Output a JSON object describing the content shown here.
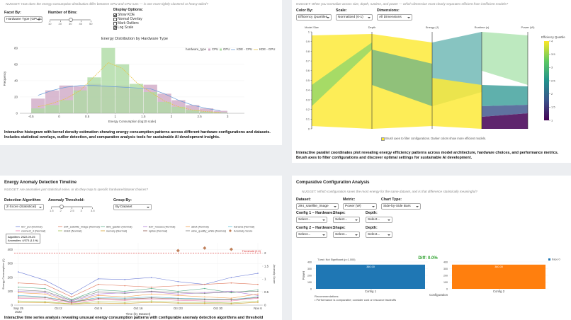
{
  "histogram_panel": {
    "nugget": "NUGGET: How does the energy consumption distribution differ between GPU and CPU runs — is one more tightly clustered or heavy-tailed?",
    "facet": {
      "label": "Facet By:",
      "value": "Hardware Type (GPU/CPU)"
    },
    "bins_control": {
      "label": "Number of Bins:",
      "ticks": [
        10,
        20,
        30,
        40,
        50
      ],
      "value": 30
    },
    "display": {
      "label": "Display Options:",
      "options": [
        {
          "label": "Show KDE",
          "checked": true
        },
        {
          "label": "Normal Overlay",
          "checked": false
        },
        {
          "label": "Mark Outliers",
          "checked": false
        },
        {
          "label": "Log Scale",
          "checked": true
        }
      ]
    },
    "chart": {
      "type": "histogram",
      "title": "Energy Distribution by Hardware Type",
      "x_label": "Energy Consumption (log10 scale)",
      "y_label": "Frequency",
      "legend_title": "hardware_type",
      "bins": [
        -0.5,
        -0.25,
        0,
        0.25,
        0.5,
        0.75,
        1,
        1.25,
        1.5,
        1.75,
        2,
        2.25,
        2.5,
        2.75,
        3
      ],
      "series": [
        {
          "name": "CPU",
          "color": "#cfa9c6",
          "values": [
            18,
            28,
            34,
            33,
            36,
            33,
            34,
            30,
            35,
            24,
            16,
            10,
            6,
            3
          ]
        },
        {
          "name": "GPU",
          "color": "#aedba4",
          "values": [
            6,
            10,
            16,
            28,
            44,
            80,
            60,
            36,
            26,
            14,
            8,
            4,
            2,
            1
          ]
        }
      ],
      "kde": [
        {
          "name": "KDE - CPU",
          "color": "#6f9fd8",
          "values": [
            22,
            28,
            32,
            34,
            34,
            33,
            32,
            31,
            30,
            24,
            16,
            10,
            6,
            3
          ]
        },
        {
          "name": "KDE - GPU",
          "color": "#e8c547",
          "values": [
            8,
            12,
            18,
            28,
            45,
            62,
            55,
            38,
            26,
            15,
            8,
            4,
            2,
            1
          ]
        }
      ],
      "xlim": [
        -0.7,
        3.3
      ],
      "xticks": [
        -0.5,
        0,
        0.5,
        1,
        1.5,
        2,
        2.5,
        3
      ],
      "ylim": [
        0,
        85
      ],
      "yticks": [
        0,
        20,
        40,
        60,
        80
      ]
    },
    "description": "Interactive histogram with kernel density estimation showing energy consumption patterns across different hardware configurations and datasets. Includes statistical overlays, outlier detection, and comparative analysis tools for sustainable AI development insights."
  },
  "parallel_panel": {
    "nugget": "NUGGET: When you normalize across size, depth, runtime, and power — which dimension most clearly separates efficient from inefficient models?",
    "color_by": {
      "label": "Color By:",
      "value": "Efficiency Quartiles"
    },
    "scale": {
      "label": "Scale:",
      "value": "Normalized (0-1)"
    },
    "dimensions": {
      "label": "Dimensions:",
      "value": "All Dimensions"
    },
    "chart": {
      "type": "parallel",
      "axes": [
        "Model Size",
        "Depth",
        "Energy (J)",
        "Runtime (s)",
        "Power (W)"
      ],
      "ylim": [
        0,
        1
      ],
      "yticks": [
        0,
        0.1,
        0.2,
        0.3,
        0.4,
        0.5,
        0.6,
        0.7,
        0.8,
        0.9,
        1
      ],
      "colorbar": {
        "title": "Efficiency Quartile",
        "lim": [
          1,
          4
        ],
        "ticks": [
          1,
          1.5,
          2,
          2.5,
          3,
          3.5,
          4
        ],
        "colors": [
          "#440154",
          "#3b528b",
          "#21918c",
          "#5ec962",
          "#fde725"
        ]
      }
    },
    "caption": "Brush axes to filter configurations. Darker colors show more efficient models.",
    "description": "Interactive parallel coordinates plot revealing energy efficiency patterns across model architecture, hardware choices, and performance metrics. Brush axes to filter configurations and discover optimal settings for sustainable AI development."
  },
  "anomaly_panel": {
    "title": "Energy Anomaly Detection Timeline",
    "nugget": "NUGGET: Are anomalies just statistical noise, or do they map to specific hardware/dataset choices?",
    "algorithm": {
      "label": "Detection Algorithm:",
      "value": "Z-Score (Statistical)"
    },
    "threshold": {
      "label": "Anomaly Threshold:",
      "ticks": [
        1.5,
        2,
        2.5,
        3,
        3.5
      ],
      "value": 2
    },
    "group_by": {
      "label": "Group By:",
      "value": "By Dataset"
    },
    "tooltip": [
      "Algorithm: 2022-09-25",
      "Anomalies: 4/373 (1.1%)"
    ],
    "chart": {
      "type": "line",
      "x_label": "Time (by Dataset)",
      "y_label": "Energy Consumption (J)",
      "y2_label": "Anomaly Score",
      "xticks": [
        "Sep 25",
        "Oct 2",
        "Oct 9",
        "Oct 16",
        "Oct 23",
        "Oct 30",
        "Nov 6"
      ],
      "xtick_year": "2022",
      "ylim": [
        0,
        450
      ],
      "yticks": [
        0,
        100,
        200,
        300,
        400
      ],
      "y2lim": [
        0,
        2.4
      ],
      "y2ticks": [
        0,
        0.5,
        1,
        1.5,
        2
      ],
      "threshold": {
        "value": 2,
        "label": "Threshold (2.0)"
      },
      "series": [
        {
          "name": "ID7_pol (Normal)",
          "color": "#6f7fd8",
          "values": [
            240,
            180,
            80,
            190,
            185,
            200,
            170,
            150,
            200,
            230
          ]
        },
        {
          "name": "294_satellite_image (Normal)",
          "color": "#e07a5f",
          "values": [
            160,
            150,
            60,
            150,
            140,
            130,
            140,
            150,
            160,
            150
          ]
        },
        {
          "name": "505_gasfan (Normal)",
          "color": "#5fb08c",
          "values": [
            130,
            120,
            40,
            110,
            100,
            120,
            100,
            120,
            90,
            110
          ]
        },
        {
          "name": "537_houses (Normal)",
          "color": "#b07cd8",
          "values": [
            100,
            90,
            30,
            80,
            90,
            95,
            80,
            90,
            100,
            70
          ]
        },
        {
          "name": "adult (Normal)",
          "color": "#f0a050",
          "values": [
            90,
            80,
            20,
            70,
            60,
            80,
            70,
            60,
            50,
            80
          ]
        },
        {
          "name": "banana (Normal)",
          "color": "#5cc0d8",
          "values": [
            70,
            60,
            25,
            55,
            50,
            60,
            50,
            45,
            40,
            60
          ]
        },
        {
          "name": "connect_4 (Normal)",
          "color": "#e87fb0",
          "values": [
            50,
            45,
            15,
            40,
            35,
            45,
            35,
            30,
            30,
            50
          ]
        },
        {
          "name": "mnist (Normal)",
          "color": "#a0c050",
          "values": [
            30,
            25,
            10,
            25,
            20,
            30,
            20,
            20,
            15,
            30
          ]
        },
        {
          "name": "nursery (Normal)",
          "color": "#d4a030",
          "values": [
            20,
            18,
            8,
            15,
            12,
            20,
            14,
            12,
            10,
            20
          ]
        },
        {
          "name": "splice (Normal)",
          "color": "#8c564b",
          "values": [
            60,
            55,
            22,
            48,
            44,
            52,
            46,
            40,
            38,
            55
          ]
        },
        {
          "name": "wine_quality_white (Normal)",
          "color": "#7f7f7f",
          "values": [
            110,
            100,
            35,
            95,
            85,
            100,
            90,
            85,
            95,
            100
          ]
        }
      ],
      "anomaly": {
        "name": "Anomaly Score",
        "color": "#c0805a",
        "values": [
          null,
          null,
          null,
          null,
          null,
          null,
          2.1,
          2.2,
          2.15,
          null
        ]
      }
    },
    "description": "Interactive time series analysis revealing unusual energy consumption patterns with configurable anomaly detection algorithms and threshold controls for sustainable AI"
  },
  "comparison_panel": {
    "title": "Comparative Configuration Analysis",
    "nugget": "NUGGET: Which configuration saves the most energy for the same dataset, and is that difference statistically meaningful?",
    "dataset": {
      "label": "Dataset:",
      "value": "294_satellite_image"
    },
    "metric": {
      "label": "Metric:",
      "value": "Power (W)"
    },
    "chart_type": {
      "label": "Chart Type:",
      "value": "Side-by-Side Bars"
    },
    "config1": [
      {
        "label": "Config 1 – Hardware:",
        "value": "Select..."
      },
      {
        "label": "Shape:",
        "value": "Select..."
      },
      {
        "label": "Depth:",
        "value": "Select..."
      }
    ],
    "config2": [
      {
        "label": "Config 2 – Hardware:",
        "value": "Select..."
      },
      {
        "label": "Shape:",
        "value": "Select..."
      },
      {
        "label": "Depth:",
        "value": "Select..."
      }
    ],
    "chart": {
      "type": "bar",
      "categories": [
        "Config 1",
        "Config 2"
      ],
      "values": [
        360,
        360
      ],
      "value_labels": [
        "360.00",
        "360.00"
      ],
      "colors": [
        "#1f77b4",
        "#ff7f0e"
      ],
      "ylim": [
        0,
        400
      ],
      "yticks": [
        0,
        100,
        200,
        300,
        400
      ],
      "y_label": "Power",
      "x_label": "Configuration",
      "diff": "Diff: 0.0%",
      "test": "T-test: Not Significant (p=1.000)",
      "legend": "trace 0",
      "recommendations_title": "Recommendations:",
      "recommendations": [
        "• Performance is comparable; consider cost or resource tradeoffs"
      ]
    }
  }
}
